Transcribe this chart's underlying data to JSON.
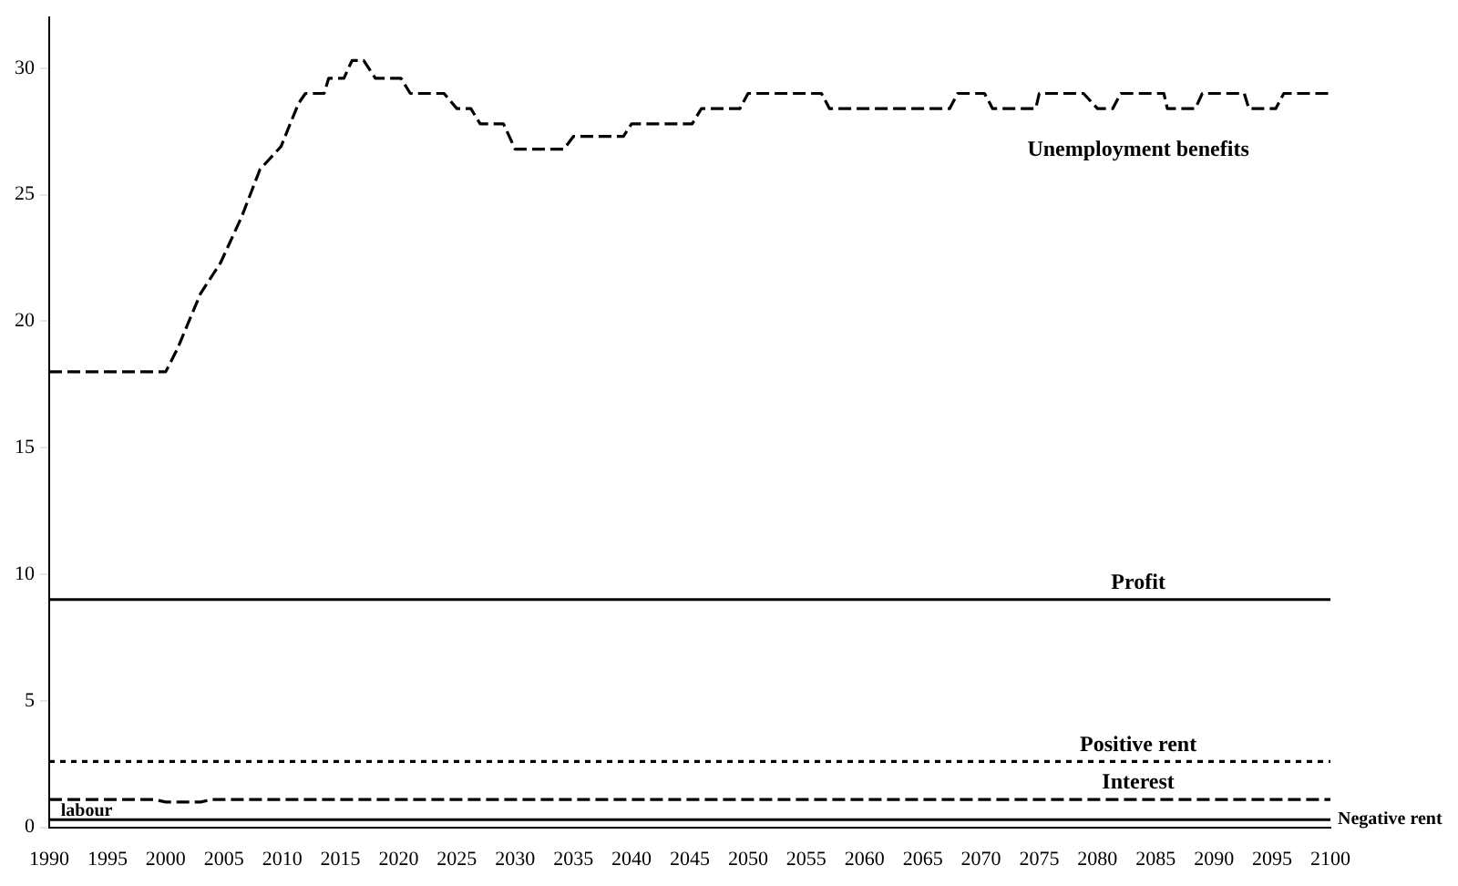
{
  "chart_data": {
    "type": "line",
    "xlim": [
      1990,
      2100
    ],
    "xticks": [
      1990,
      1995,
      2000,
      2005,
      2010,
      2015,
      2020,
      2025,
      2030,
      2035,
      2040,
      2045,
      2050,
      2055,
      2060,
      2065,
      2070,
      2075,
      2080,
      2085,
      2090,
      2095,
      2100
    ],
    "ylim": [
      0,
      32
    ],
    "yticks": [
      0,
      5,
      10,
      15,
      20,
      25,
      30
    ],
    "grid": false,
    "legend": false,
    "marker": "none",
    "series": [
      {
        "name": "Unemployment benefits",
        "color": "#000000",
        "line_style": "dashed",
        "x": [
          1990,
          2000,
          2001,
          2003,
          2004.7,
          2006.5,
          2008.1,
          2009.9,
          2011.4,
          2012,
          2013.6,
          2014,
          2015.3,
          2016,
          2017,
          2018,
          2020.2,
          2021,
          2023.9,
          2025,
          2026.2,
          2027,
          2029,
          2030,
          2034.2,
          2035,
          2039.3,
          2040,
          2045.2,
          2046,
          2049.3,
          2050,
          2056.3,
          2057,
          2067.3,
          2068,
          2070.3,
          2071,
          2074.7,
          2075,
          2078.8,
          2080,
          2081.3,
          2082,
          2085.7,
          2086,
          2088.4,
          2089,
          2092.6,
          2093,
          2095.3,
          2096,
          2100
        ],
        "values": [
          18,
          18,
          18.9,
          21.1,
          22.3,
          24.1,
          26,
          26.9,
          28.6,
          29,
          29,
          29.6,
          29.6,
          30.3,
          30.3,
          29.6,
          29.6,
          29,
          29,
          28.4,
          28.4,
          27.8,
          27.8,
          26.8,
          26.8,
          27.3,
          27.3,
          27.8,
          27.8,
          28.4,
          28.4,
          29,
          29,
          28.4,
          28.4,
          29,
          29,
          28.4,
          28.4,
          29,
          29,
          28.4,
          28.4,
          29,
          29,
          28.4,
          28.4,
          29,
          29,
          28.4,
          28.4,
          29,
          29
        ]
      },
      {
        "name": "Profit",
        "color": "#000000",
        "line_style": "solid",
        "x": [
          1990,
          2100
        ],
        "values": [
          9,
          9
        ]
      },
      {
        "name": "Positive rent",
        "color": "#000000",
        "line_style": "dotted",
        "x": [
          1990,
          2100
        ],
        "values": [
          2.6,
          2.6
        ]
      },
      {
        "name": "Interest",
        "color": "#000000",
        "line_style": "dashed",
        "x": [
          1990,
          1999,
          2000,
          2003,
          2004,
          2100
        ],
        "values": [
          1.1,
          1.1,
          1.0,
          1.0,
          1.1,
          1.1
        ]
      },
      {
        "name": "Negative rent",
        "color": "#000000",
        "line_style": "solid",
        "x": [
          1990,
          2100
        ],
        "values": [
          0.3,
          0.3
        ]
      }
    ],
    "annotations": [
      {
        "text": "labour",
        "x": 1991,
        "y": 0.3
      }
    ]
  }
}
